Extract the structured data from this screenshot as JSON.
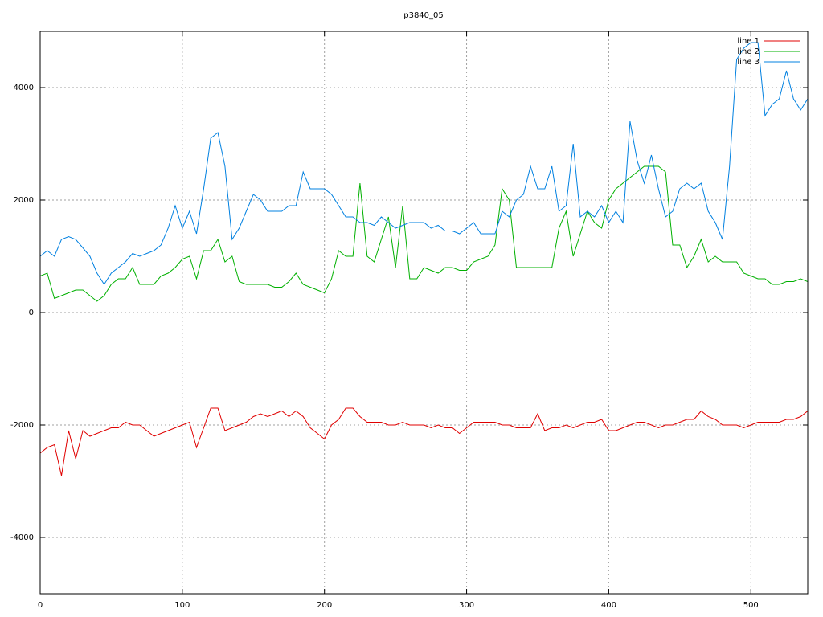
{
  "chart_data": {
    "type": "line",
    "title": "p3840_05",
    "x": [
      0,
      5,
      10,
      15,
      20,
      25,
      30,
      35,
      40,
      45,
      50,
      55,
      60,
      65,
      70,
      75,
      80,
      85,
      90,
      95,
      100,
      105,
      110,
      115,
      120,
      125,
      130,
      135,
      140,
      145,
      150,
      155,
      160,
      165,
      170,
      175,
      180,
      185,
      190,
      195,
      200,
      205,
      210,
      215,
      220,
      225,
      230,
      235,
      240,
      245,
      250,
      255,
      260,
      265,
      270,
      275,
      280,
      285,
      290,
      295,
      300,
      305,
      310,
      315,
      320,
      325,
      330,
      335,
      340,
      345,
      350,
      355,
      360,
      365,
      370,
      375,
      380,
      385,
      390,
      395,
      400,
      405,
      410,
      415,
      420,
      425,
      430,
      435,
      440,
      445,
      450,
      455,
      460,
      465,
      470,
      475,
      480,
      485,
      490,
      495,
      500,
      505,
      510,
      515,
      520,
      525,
      530,
      535,
      540
    ],
    "series": [
      {
        "name": "line 1",
        "color": "#e00000",
        "values": [
          -2500,
          -2400,
          -2350,
          -2900,
          -2100,
          -2600,
          -2100,
          -2200,
          -2150,
          -2100,
          -2050,
          -2050,
          -1950,
          -2000,
          -2000,
          -2100,
          -2200,
          -2150,
          -2100,
          -2050,
          -2000,
          -1950,
          -2400,
          -2050,
          -1700,
          -1700,
          -2100,
          -2050,
          -2000,
          -1950,
          -1850,
          -1800,
          -1850,
          -1800,
          -1750,
          -1850,
          -1750,
          -1850,
          -2050,
          -2150,
          -2250,
          -2000,
          -1900,
          -1700,
          -1700,
          -1850,
          -1950,
          -1950,
          -1950,
          -2000,
          -2000,
          -1950,
          -2000,
          -2000,
          -2000,
          -2050,
          -2000,
          -2050,
          -2050,
          -2150,
          -2050,
          -1950,
          -1950,
          -1950,
          -1950,
          -2000,
          -2000,
          -2050,
          -2050,
          -2050,
          -1800,
          -2100,
          -2050,
          -2050,
          -2000,
          -2050,
          -2000,
          -1950,
          -1950,
          -1900,
          -2100,
          -2100,
          -2050,
          -2000,
          -1950,
          -1950,
          -2000,
          -2050,
          -2000,
          -2000,
          -1950,
          -1900,
          -1900,
          -1750,
          -1850,
          -1900,
          -2000,
          -2000,
          -2000,
          -2050,
          -2000,
          -1950,
          -1950,
          -1950,
          -1950,
          -1900,
          -1900,
          -1850,
          -1750
        ]
      },
      {
        "name": "line 2",
        "color": "#00b000",
        "values": [
          650,
          700,
          250,
          300,
          350,
          400,
          400,
          300,
          200,
          300,
          500,
          600,
          600,
          800,
          500,
          500,
          500,
          650,
          700,
          800,
          950,
          1000,
          600,
          1100,
          1100,
          1300,
          900,
          1000,
          550,
          500,
          500,
          500,
          500,
          450,
          450,
          550,
          700,
          500,
          450,
          400,
          350,
          600,
          1100,
          1000,
          1000,
          2300,
          1000,
          900,
          1300,
          1700,
          800,
          1900,
          600,
          600,
          800,
          750,
          700,
          800,
          800,
          750,
          750,
          900,
          950,
          1000,
          1200,
          2200,
          2000,
          800,
          800,
          800,
          800,
          800,
          800,
          1500,
          1800,
          1000,
          1400,
          1800,
          1600,
          1500,
          2000,
          2200,
          2300,
          2400,
          2500,
          2600,
          2600,
          2600,
          2500,
          1200,
          1200,
          800,
          1000,
          1300,
          900,
          1000,
          900,
          900,
          900,
          700,
          650,
          600,
          600,
          500,
          500,
          550,
          550,
          600,
          550
        ]
      },
      {
        "name": "line 3",
        "color": "#0080e0",
        "values": [
          1000,
          1100,
          1000,
          1300,
          1350,
          1300,
          1150,
          1000,
          700,
          500,
          700,
          800,
          900,
          1050,
          1000,
          1050,
          1100,
          1200,
          1500,
          1900,
          1500,
          1800,
          1400,
          2200,
          3100,
          3200,
          2600,
          1300,
          1500,
          1800,
          2100,
          2000,
          1800,
          1800,
          1800,
          1900,
          1900,
          2500,
          2200,
          2200,
          2200,
          2100,
          1900,
          1700,
          1700,
          1600,
          1600,
          1550,
          1700,
          1600,
          1500,
          1550,
          1600,
          1600,
          1600,
          1500,
          1550,
          1450,
          1450,
          1400,
          1500,
          1600,
          1400,
          1400,
          1400,
          1800,
          1700,
          2000,
          2100,
          2600,
          2200,
          2200,
          2600,
          1800,
          1900,
          3000,
          1700,
          1800,
          1700,
          1900,
          1600,
          1800,
          1600,
          3400,
          2700,
          2300,
          2800,
          2200,
          1700,
          1800,
          2200,
          2300,
          2200,
          2300,
          1800,
          1600,
          1300,
          2600,
          4500,
          4700,
          4800,
          4800,
          3500,
          3700,
          3800,
          4300,
          3800,
          3600,
          3800
        ]
      }
    ],
    "xlim": [
      0,
      540
    ],
    "xticks": [
      0,
      100,
      200,
      300,
      400,
      500
    ],
    "ylim": [
      -5000,
      5000
    ],
    "yticks": [
      -4000,
      -2000,
      0,
      2000,
      4000
    ],
    "grid": true,
    "legend": "top-right"
  }
}
